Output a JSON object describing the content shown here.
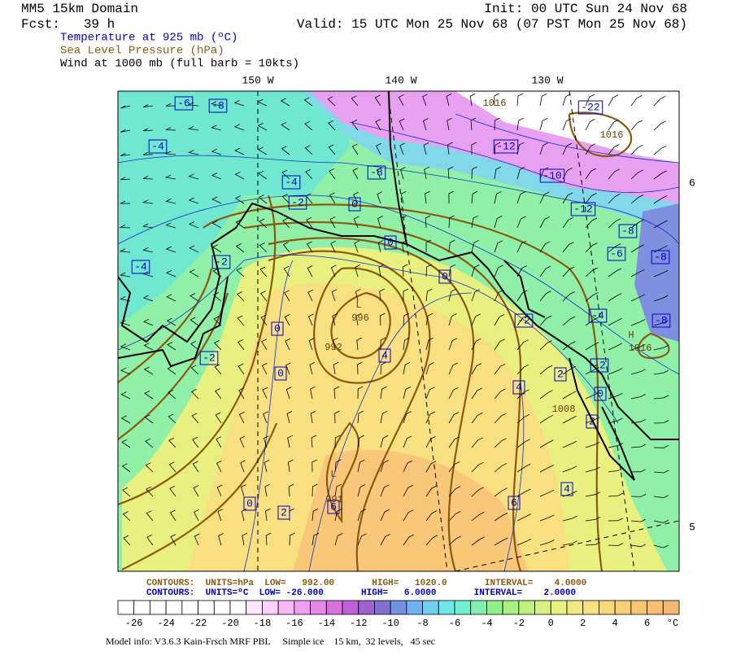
{
  "header": {
    "domain": "MM5 15km Domain",
    "forecast": "Fcst:   39 h",
    "init": "Init: 00 UTC Sun 24 Nov 68",
    "valid": "Valid: 15 UTC Mon 25 Nov 68 (07 PST Mon 25 Nov 68)",
    "field_temperature": "Temperature at 925 mb (ºC)",
    "field_pressure": "Sea Level Pressure (hPa)",
    "field_wind": "Wind at 1000 mb (full barb = 10kts)"
  },
  "map": {
    "lon_labels": [
      "150 W",
      "140 W",
      "130 W"
    ],
    "lat_labels": [
      "6",
      "5"
    ],
    "temperature_labels": [
      -6,
      -8,
      -4,
      -4,
      -2,
      0,
      0,
      -4,
      -2,
      0,
      0,
      0,
      -2,
      4,
      -2,
      -4,
      -2,
      2,
      4,
      0,
      2,
      -6,
      -8,
      -8,
      -8,
      -12,
      -10,
      -12,
      -22,
      0,
      2,
      6,
      6,
      4,
      -8
    ],
    "pressure_labels": [
      "L",
      "996",
      "992",
      "L",
      "991",
      "1008",
      "H",
      "1016",
      "1016",
      "1016"
    ]
  },
  "footer": {
    "pressure_contours": "CONTOURS:  UNITS=hPa  LOW=   992.00       HIGH=   1020.0       INTERVAL=    4.0000",
    "temperature_contours": "CONTOURS:  UNITS=ºC  LOW= -26.000       HIGH=   6.0000       INTERVAL=    2.0000",
    "model_info": "Model info: V3.6.3 Kain-Frsch MRF PBL     Simple ice    15 km,  32 levels,   45 sec"
  },
  "colorbar": {
    "ticks": [
      -26,
      -24,
      -22,
      -20,
      -18,
      -16,
      -14,
      -12,
      -10,
      -8,
      -6,
      -4,
      -2,
      0,
      2,
      4,
      6
    ],
    "unit": "°C",
    "colors": [
      "#ffffff",
      "#ffffff",
      "#ffffff",
      "#ffffff",
      "#ffffff",
      "#ffffff",
      "#ffffff",
      "#ffffff",
      "#ffe8ff",
      "#ffd0ff",
      "#f8b8f8",
      "#f0a0f0",
      "#e888e8",
      "#d870e0",
      "#c060d8",
      "#a060d0",
      "#8070d0",
      "#7090e0",
      "#70b0f0",
      "#70d0f0",
      "#70e8e8",
      "#70f0d0",
      "#80f0b0",
      "#90f090",
      "#a8f080",
      "#c0f080",
      "#d8f080",
      "#e8f080",
      "#f0e880",
      "#f8e080",
      "#f8d878",
      "#f8d078",
      "#f8c870",
      "#f8c070",
      "#f0b870"
    ]
  }
}
